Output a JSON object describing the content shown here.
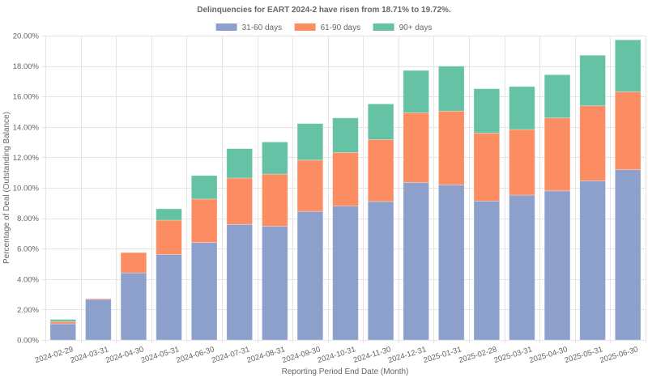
{
  "chart_data": {
    "type": "bar",
    "stacked": true,
    "title": "Delinquencies for EART 2024-2 have risen from 18.71% to 19.72%.",
    "xlabel": "Reporting Period End Date (Month)",
    "ylabel": "Percentage of Deal (Outstanding Balance)",
    "ylim": [
      0,
      20
    ],
    "ytick_step": 2,
    "y_tick_labels": [
      "0.00%",
      "2.00%",
      "4.00%",
      "6.00%",
      "8.00%",
      "10.00%",
      "12.00%",
      "14.00%",
      "16.00%",
      "18.00%",
      "20.00%"
    ],
    "grid": true,
    "legend_position": "top-center",
    "categories": [
      "2024-02-29",
      "2024-03-31",
      "2024-04-30",
      "2024-05-31",
      "2024-06-30",
      "2024-07-31",
      "2024-08-31",
      "2024-09-30",
      "2024-10-31",
      "2024-11-30",
      "2024-12-31",
      "2025-01-31",
      "2025-02-28",
      "2025-03-31",
      "2025-04-30",
      "2025-05-31",
      "2025-06-30"
    ],
    "series": [
      {
        "name": "31-60 days",
        "color": "#8da0cb",
        "values": [
          1.06,
          2.67,
          4.41,
          5.62,
          6.4,
          7.59,
          7.48,
          8.45,
          8.8,
          9.1,
          10.35,
          10.19,
          9.13,
          9.52,
          9.8,
          10.46,
          11.19
        ]
      },
      {
        "name": "61-90 days",
        "color": "#fc8d62",
        "values": [
          0.15,
          0.05,
          1.33,
          2.25,
          2.86,
          3.05,
          3.42,
          3.37,
          3.52,
          4.07,
          4.58,
          4.85,
          4.47,
          4.31,
          4.79,
          4.93,
          5.12
        ]
      },
      {
        "name": "90+ days",
        "color": "#66c2a5",
        "values": [
          0.14,
          0.0,
          0.0,
          0.75,
          1.54,
          1.93,
          2.11,
          2.4,
          2.27,
          2.34,
          2.78,
          2.95,
          2.91,
          2.82,
          2.84,
          3.32,
          3.41
        ]
      }
    ]
  }
}
